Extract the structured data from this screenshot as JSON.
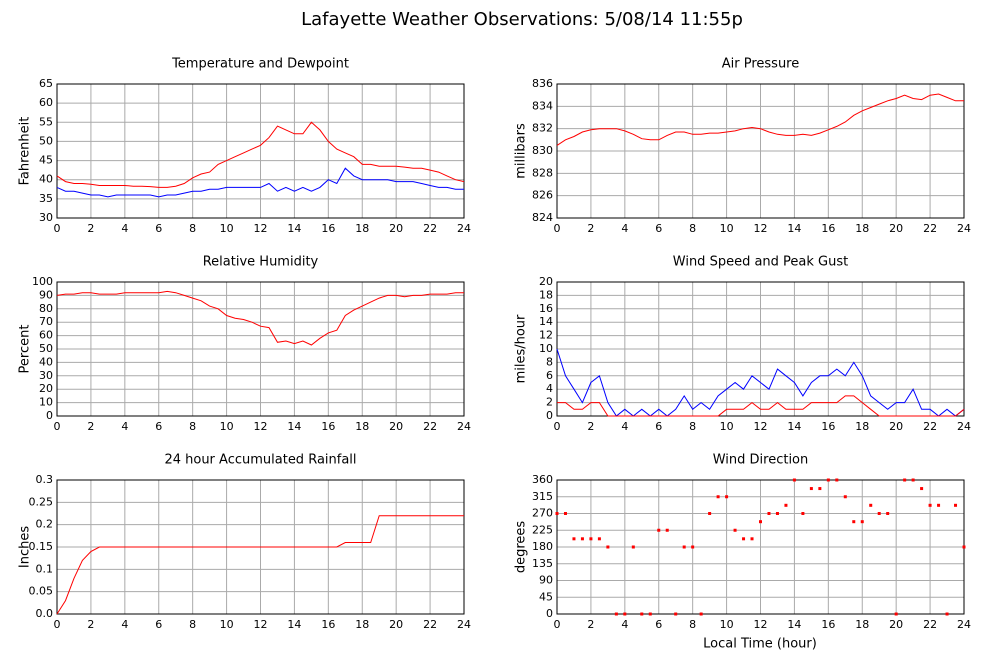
{
  "title": "Lafayette Weather Observations: 5/08/14 11:55p",
  "xlabel": "Local Time (hour)",
  "chart_data": [
    {
      "type": "line",
      "title": "Temperature and Dewpoint",
      "ylabel": "Fahrenheit",
      "x": [
        0,
        0.5,
        1,
        1.5,
        2,
        2.5,
        3,
        3.5,
        4,
        4.5,
        5,
        5.5,
        6,
        6.5,
        7,
        7.5,
        8,
        8.5,
        9,
        9.5,
        10,
        10.5,
        11,
        11.5,
        12,
        12.5,
        13,
        13.5,
        14,
        14.5,
        15,
        15.5,
        16,
        16.5,
        17,
        17.5,
        18,
        18.5,
        19,
        19.5,
        20,
        20.5,
        21,
        21.5,
        22,
        22.5,
        23,
        23.5,
        24
      ],
      "series": [
        {
          "color": "#ff0000",
          "values": [
            41,
            39.5,
            39,
            39,
            38.8,
            38.5,
            38.5,
            38.5,
            38.5,
            38.3,
            38.3,
            38.2,
            38,
            38,
            38.3,
            39,
            40.5,
            41.5,
            42,
            44,
            45,
            46,
            47,
            48,
            49,
            51,
            54,
            53,
            52,
            52,
            55,
            53,
            50,
            48,
            47,
            46,
            44,
            44,
            43.5,
            43.5,
            43.5,
            43.3,
            43,
            43,
            42.5,
            42,
            41,
            40,
            39.5
          ]
        },
        {
          "color": "#0000ff",
          "values": [
            38,
            37,
            37,
            36.5,
            36,
            36,
            35.5,
            36,
            36,
            36,
            36,
            36,
            35.5,
            36,
            36,
            36.5,
            37,
            37,
            37.5,
            37.5,
            38,
            38,
            38,
            38,
            38,
            39,
            37,
            38,
            37,
            38,
            37,
            38,
            40,
            39,
            43,
            41,
            40,
            40,
            40,
            40,
            39.5,
            39.5,
            39.5,
            39,
            38.5,
            38,
            38,
            37.5,
            37.5
          ]
        }
      ],
      "xlim": [
        0,
        24
      ],
      "xticks": [
        0,
        2,
        4,
        6,
        8,
        10,
        12,
        14,
        16,
        18,
        20,
        22,
        24
      ],
      "ylim": [
        30,
        65
      ],
      "yticks": [
        30,
        35,
        40,
        45,
        50,
        55,
        60,
        65
      ],
      "grid": true
    },
    {
      "type": "line",
      "title": "Air Pressure",
      "ylabel": "millibars",
      "x": [
        0,
        0.5,
        1,
        1.5,
        2,
        2.5,
        3,
        3.5,
        4,
        4.5,
        5,
        5.5,
        6,
        6.5,
        7,
        7.5,
        8,
        8.5,
        9,
        9.5,
        10,
        10.5,
        11,
        11.5,
        12,
        12.5,
        13,
        13.5,
        14,
        14.5,
        15,
        15.5,
        16,
        16.5,
        17,
        17.5,
        18,
        18.5,
        19,
        19.5,
        20,
        20.5,
        21,
        21.5,
        22,
        22.5,
        23,
        23.5,
        24
      ],
      "series": [
        {
          "color": "#ff0000",
          "values": [
            830.5,
            831,
            831.3,
            831.7,
            831.9,
            832,
            832,
            832,
            831.8,
            831.5,
            831.1,
            831,
            831,
            831.4,
            831.7,
            831.7,
            831.5,
            831.5,
            831.6,
            831.6,
            831.7,
            831.8,
            832,
            832.1,
            832,
            831.7,
            831.5,
            831.4,
            831.4,
            831.5,
            831.4,
            831.6,
            831.9,
            832.2,
            832.6,
            833.2,
            833.6,
            833.9,
            834.2,
            834.5,
            834.7,
            835,
            834.7,
            834.6,
            835,
            835.1,
            834.8,
            834.5,
            834.5
          ]
        }
      ],
      "xlim": [
        0,
        24
      ],
      "xticks": [
        0,
        2,
        4,
        6,
        8,
        10,
        12,
        14,
        16,
        18,
        20,
        22,
        24
      ],
      "ylim": [
        824,
        836
      ],
      "yticks": [
        824,
        826,
        828,
        830,
        832,
        834,
        836
      ],
      "grid": true
    },
    {
      "type": "line",
      "title": "Relative Humidity",
      "ylabel": "Percent",
      "x": [
        0,
        0.5,
        1,
        1.5,
        2,
        2.5,
        3,
        3.5,
        4,
        4.5,
        5,
        5.5,
        6,
        6.5,
        7,
        7.5,
        8,
        8.5,
        9,
        9.5,
        10,
        10.5,
        11,
        11.5,
        12,
        12.5,
        13,
        13.5,
        14,
        14.5,
        15,
        15.5,
        16,
        16.5,
        17,
        17.5,
        18,
        18.5,
        19,
        19.5,
        20,
        20.5,
        21,
        21.5,
        22,
        22.5,
        23,
        23.5,
        24
      ],
      "series": [
        {
          "color": "#ff0000",
          "values": [
            90,
            91,
            91,
            92,
            92,
            91,
            91,
            91,
            92,
            92,
            92,
            92,
            92,
            93,
            92,
            90,
            88,
            86,
            82,
            80,
            75,
            73,
            72,
            70,
            67,
            66,
            55,
            56,
            54,
            56,
            53,
            58,
            62,
            64,
            75,
            79,
            82,
            85,
            88,
            90,
            90,
            89,
            90,
            90,
            91,
            91,
            91,
            92,
            92
          ]
        }
      ],
      "xlim": [
        0,
        24
      ],
      "xticks": [
        0,
        2,
        4,
        6,
        8,
        10,
        12,
        14,
        16,
        18,
        20,
        22,
        24
      ],
      "ylim": [
        0,
        100
      ],
      "yticks": [
        0,
        10,
        20,
        30,
        40,
        50,
        60,
        70,
        80,
        90,
        100
      ],
      "grid": true
    },
    {
      "type": "line",
      "title": "Wind Speed and Peak Gust",
      "ylabel": "miles/hour",
      "x": [
        0,
        0.5,
        1,
        1.5,
        2,
        2.5,
        3,
        3.5,
        4,
        4.5,
        5,
        5.5,
        6,
        6.5,
        7,
        7.5,
        8,
        8.5,
        9,
        9.5,
        10,
        10.5,
        11,
        11.5,
        12,
        12.5,
        13,
        13.5,
        14,
        14.5,
        15,
        15.5,
        16,
        16.5,
        17,
        17.5,
        18,
        18.5,
        19,
        19.5,
        20,
        20.5,
        21,
        21.5,
        22,
        22.5,
        23,
        23.5,
        24
      ],
      "series": [
        {
          "color": "#0000ff",
          "values": [
            10,
            6,
            4,
            2,
            5,
            6,
            2,
            0,
            1,
            0,
            1,
            0,
            1,
            0,
            1,
            3,
            1,
            2,
            1,
            3,
            4,
            5,
            4,
            6,
            5,
            4,
            7,
            6,
            5,
            3,
            5,
            6,
            6,
            7,
            6,
            8,
            6,
            3,
            2,
            1,
            2,
            2,
            4,
            1,
            1,
            0,
            1,
            0,
            1
          ]
        },
        {
          "color": "#ff0000",
          "values": [
            2,
            2,
            1,
            1,
            2,
            2,
            0,
            0,
            0,
            0,
            0,
            0,
            0,
            0,
            0,
            0,
            0,
            0,
            0,
            0,
            1,
            1,
            1,
            2,
            1,
            1,
            2,
            1,
            1,
            1,
            2,
            2,
            2,
            2,
            3,
            3,
            2,
            1,
            0,
            0,
            0,
            0,
            0,
            0,
            0,
            0,
            0,
            0,
            1
          ]
        }
      ],
      "xlim": [
        0,
        24
      ],
      "xticks": [
        0,
        2,
        4,
        6,
        8,
        10,
        12,
        14,
        16,
        18,
        20,
        22,
        24
      ],
      "ylim": [
        0,
        20
      ],
      "yticks": [
        0,
        2,
        4,
        6,
        8,
        10,
        12,
        14,
        16,
        18,
        20
      ],
      "grid": true
    },
    {
      "type": "line",
      "title": "24 hour Accumulated Rainfall",
      "ylabel": "Inches",
      "x": [
        0,
        0.5,
        1,
        1.5,
        2,
        2.5,
        3,
        3.5,
        4,
        4.5,
        5,
        5.5,
        6,
        6.5,
        7,
        7.5,
        8,
        8.5,
        9,
        9.5,
        10,
        10.5,
        11,
        11.5,
        12,
        12.5,
        13,
        13.5,
        14,
        14.5,
        15,
        15.5,
        16,
        16.5,
        17,
        17.5,
        18,
        18.5,
        19,
        19.5,
        20,
        20.5,
        21,
        21.5,
        22,
        22.5,
        23,
        23.5,
        24
      ],
      "series": [
        {
          "color": "#ff0000",
          "values": [
            0,
            0.03,
            0.08,
            0.12,
            0.14,
            0.15,
            0.15,
            0.15,
            0.15,
            0.15,
            0.15,
            0.15,
            0.15,
            0.15,
            0.15,
            0.15,
            0.15,
            0.15,
            0.15,
            0.15,
            0.15,
            0.15,
            0.15,
            0.15,
            0.15,
            0.15,
            0.15,
            0.15,
            0.15,
            0.15,
            0.15,
            0.15,
            0.15,
            0.15,
            0.16,
            0.16,
            0.16,
            0.16,
            0.22,
            0.22,
            0.22,
            0.22,
            0.22,
            0.22,
            0.22,
            0.22,
            0.22,
            0.22,
            0.22
          ]
        }
      ],
      "xlim": [
        0,
        24
      ],
      "xticks": [
        0,
        2,
        4,
        6,
        8,
        10,
        12,
        14,
        16,
        18,
        20,
        22,
        24
      ],
      "ylim": [
        0,
        0.3
      ],
      "yticks": [
        {
          "value": 0,
          "label": "0.0"
        },
        0.05,
        0.1,
        0.15,
        0.2,
        0.25,
        0.3
      ],
      "grid": true
    },
    {
      "type": "scatter",
      "title": "Wind Direction",
      "ylabel": "degrees",
      "x": [
        0,
        0.5,
        1,
        1.5,
        2,
        2.5,
        3,
        3.5,
        4,
        4.5,
        5,
        5.5,
        6,
        6.5,
        7,
        7.5,
        8,
        8.5,
        9,
        9.5,
        10,
        10.5,
        11,
        11.5,
        12,
        12.5,
        13,
        13.5,
        14,
        14.5,
        15,
        15.5,
        16,
        16.5,
        17,
        17.5,
        18,
        18.5,
        19,
        19.5,
        20,
        20.5,
        21,
        21.5,
        22,
        22.5,
        23,
        23.5,
        24
      ],
      "series": [
        {
          "color": "#ff0000",
          "values": [
            270,
            270,
            202,
            202,
            202,
            202,
            180,
            0,
            0,
            180,
            0,
            0,
            225,
            225,
            0,
            180,
            180,
            0,
            270,
            315,
            315,
            225,
            202,
            202,
            248,
            270,
            270,
            292,
            360,
            270,
            337,
            337,
            360,
            360,
            315,
            248,
            248,
            292,
            270,
            270,
            0,
            360,
            360,
            337,
            292,
            292,
            0,
            292,
            180
          ]
        }
      ],
      "xlim": [
        0,
        24
      ],
      "xticks": [
        0,
        2,
        4,
        6,
        8,
        10,
        12,
        14,
        16,
        18,
        20,
        22,
        24
      ],
      "ylim": [
        0,
        360
      ],
      "yticks": [
        0,
        45,
        90,
        135,
        180,
        225,
        270,
        315,
        360
      ],
      "grid": true
    }
  ]
}
